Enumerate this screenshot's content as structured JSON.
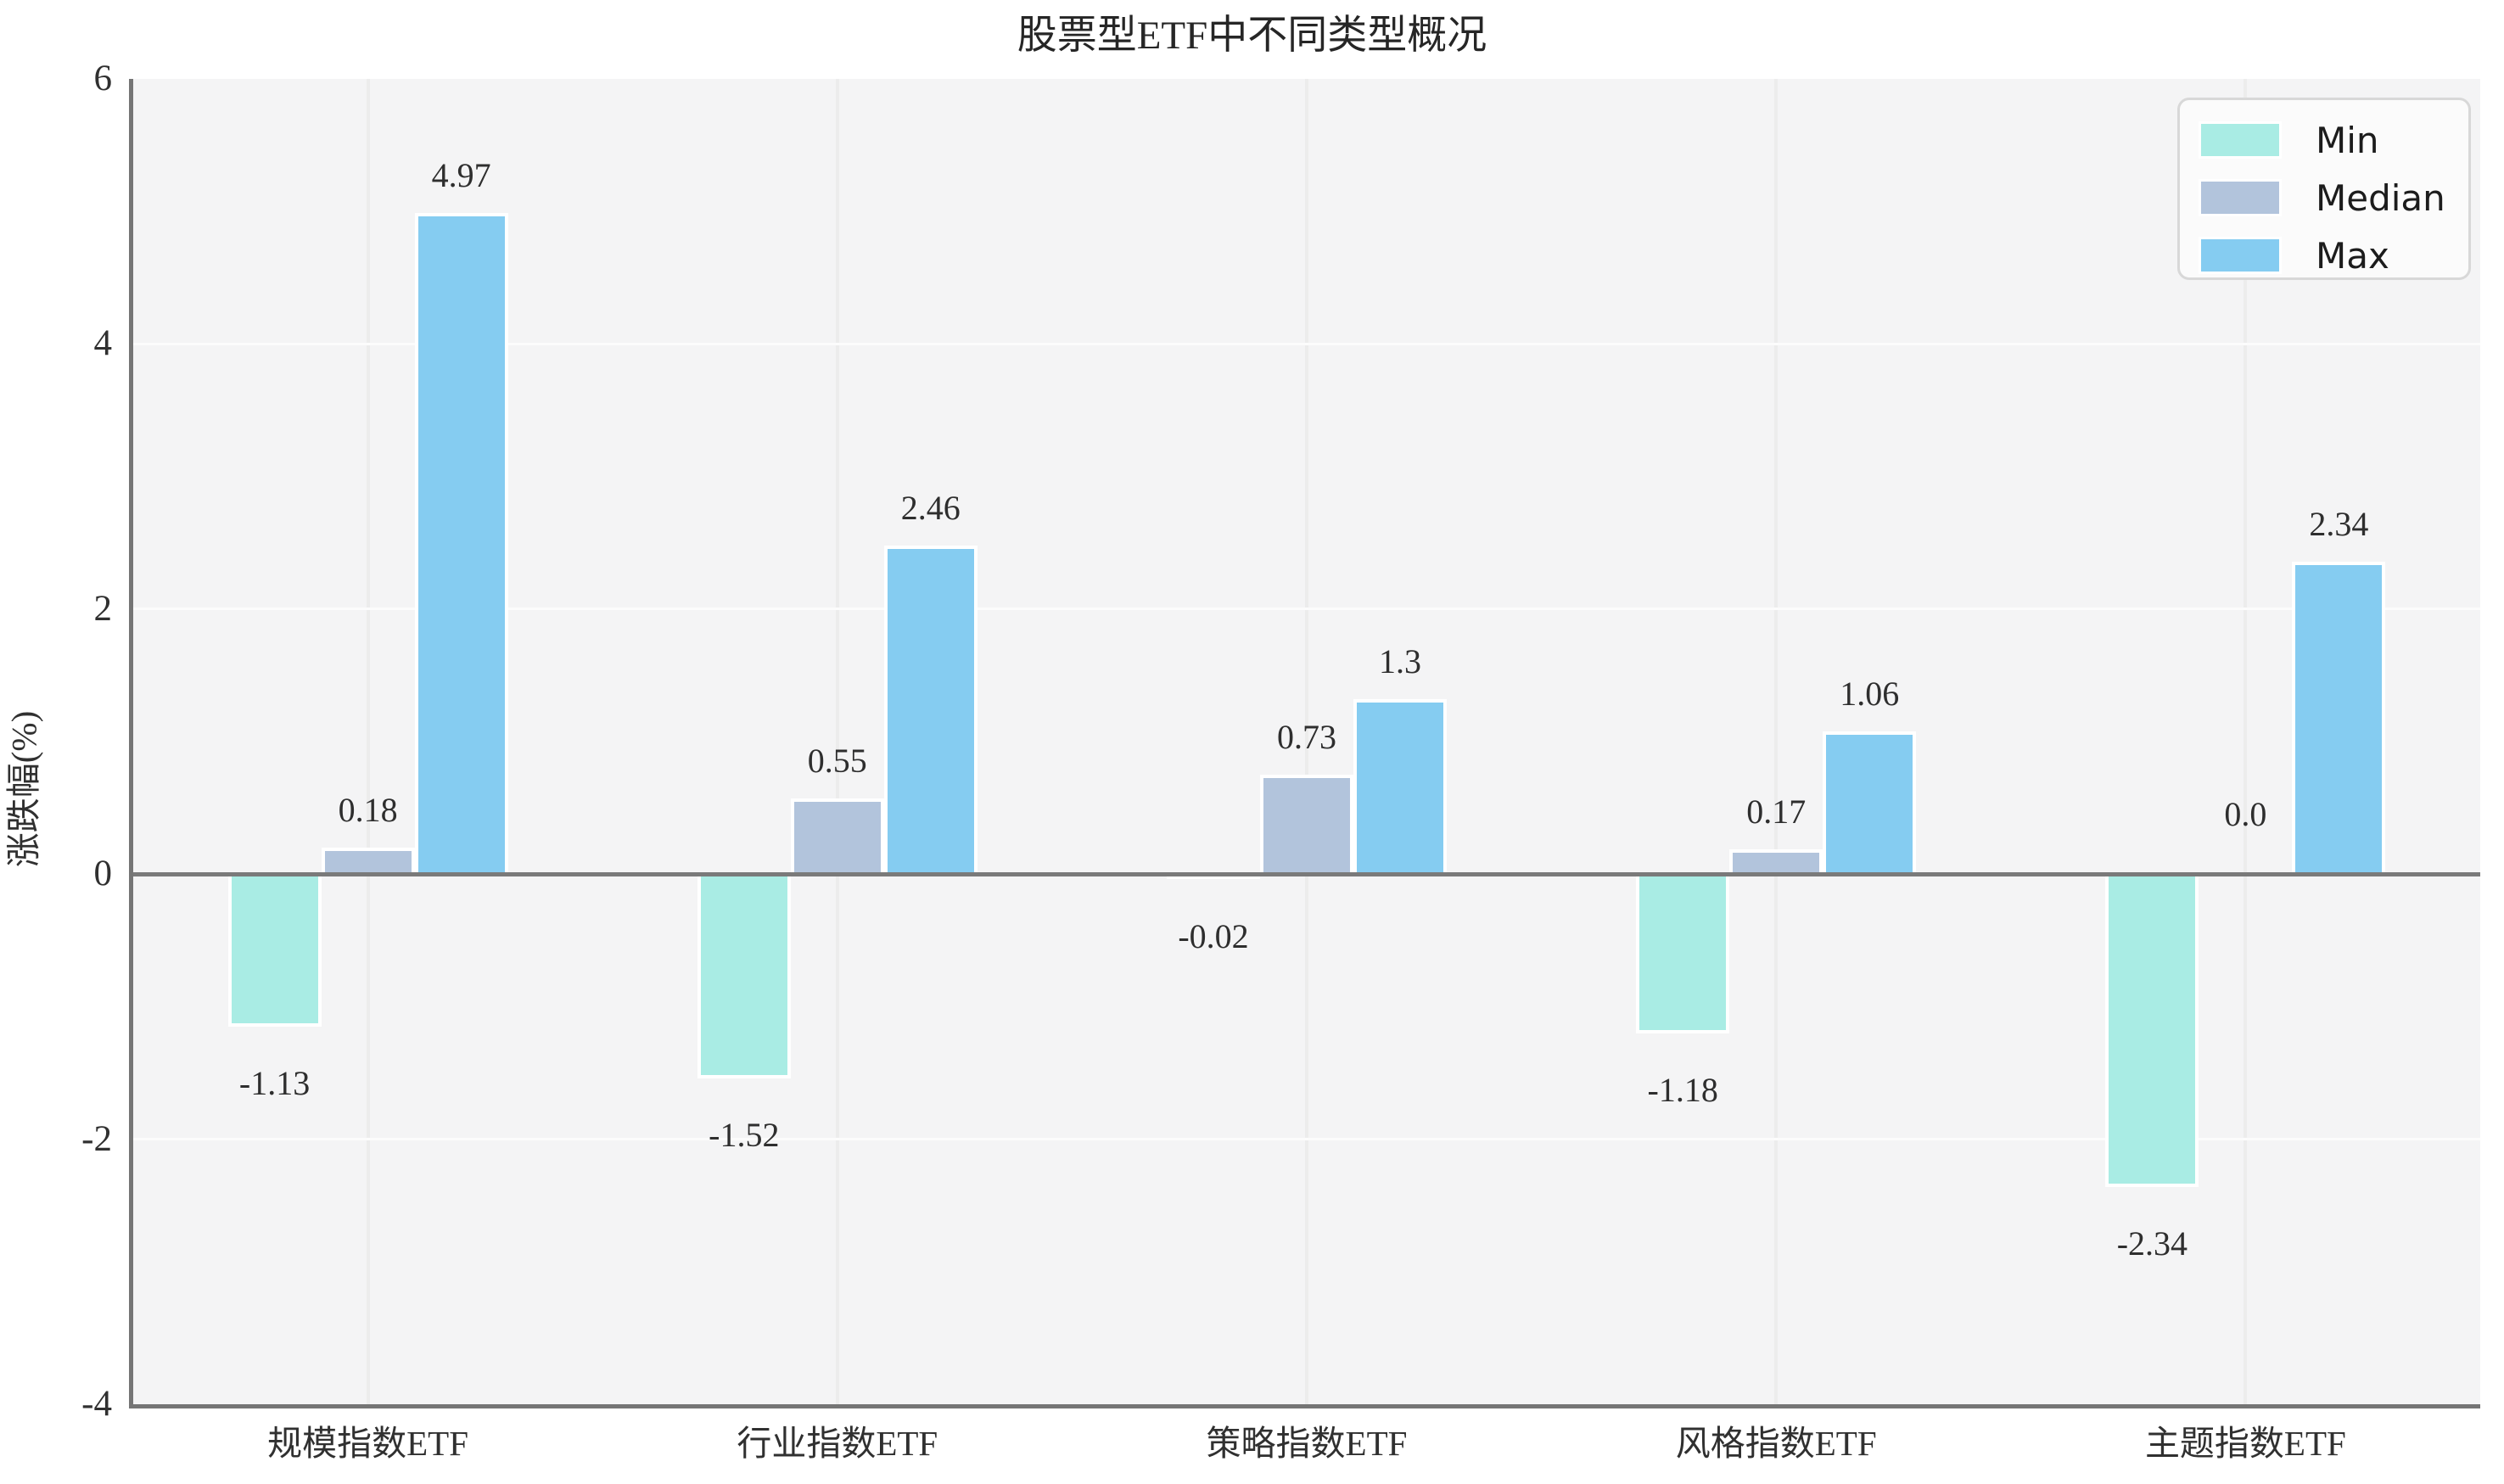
{
  "chart_data": {
    "type": "bar",
    "title": "股票型ETF中不同类型概况",
    "ylabel": "涨跌幅(%)",
    "xlabel": "",
    "categories": [
      "规模指数ETF",
      "行业指数ETF",
      "策略指数ETF",
      "风格指数ETF",
      "主题指数ETF"
    ],
    "series": [
      {
        "name": "Min",
        "color": "#a9ece4",
        "values": [
          -1.13,
          -1.52,
          -0.02,
          -1.18,
          -2.34
        ],
        "labels": [
          "-1.13",
          "-1.52",
          "-0.02",
          "-1.18",
          "-2.34"
        ]
      },
      {
        "name": "Median",
        "color": "#b2c4dc",
        "values": [
          0.18,
          0.55,
          0.73,
          0.17,
          0.0
        ],
        "labels": [
          "0.18",
          "0.55",
          "0.73",
          "0.17",
          "0.0"
        ]
      },
      {
        "name": "Max",
        "color": "#85ccf1",
        "values": [
          4.97,
          2.46,
          1.3,
          1.06,
          2.34
        ],
        "labels": [
          "4.97",
          "2.46",
          "1.3",
          "1.06",
          "2.34"
        ]
      }
    ],
    "ylim": [
      -4,
      6
    ],
    "yticks": [
      6,
      4,
      2,
      0,
      -2,
      -4
    ],
    "ytick_labels": [
      "6",
      "4",
      "2",
      "0",
      "-2",
      "-4"
    ],
    "grid": true,
    "legend_position": "upper right"
  }
}
